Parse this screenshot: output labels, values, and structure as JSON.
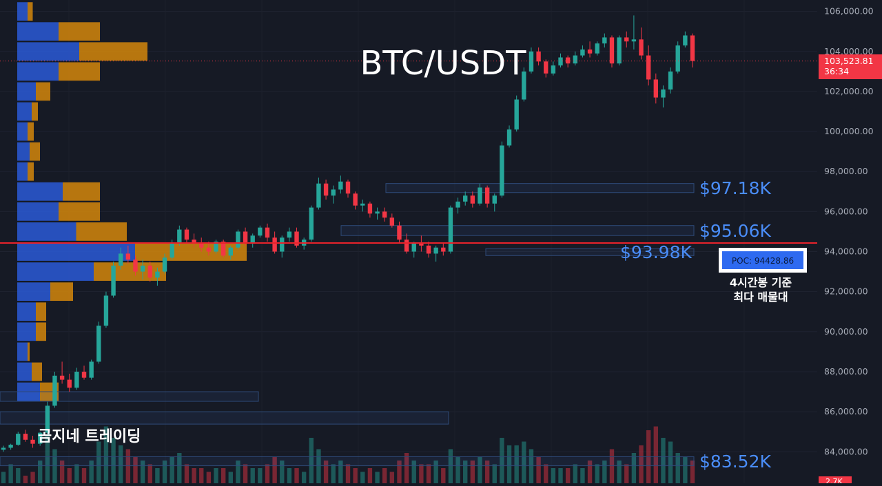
{
  "chart_data": {
    "type": "candlestick",
    "title": "BTC/USDT",
    "watermark": "곰지네 트레이딩",
    "y_axis": {
      "ticks": [
        84000,
        86000,
        88000,
        90000,
        92000,
        94000,
        96000,
        98000,
        100000,
        102000,
        104000,
        106000
      ],
      "tick_labels": [
        "84,000.00",
        "86,000.00",
        "88,000.00",
        "90,000.00",
        "92,000.00",
        "94,000.00",
        "96,000.00",
        "98,000.00",
        "100,000.00",
        "102,000.00",
        "104,000.00",
        "106,000.00"
      ],
      "range": [
        83200,
        106500
      ],
      "side": "right"
    },
    "current_price": {
      "value": 103523.81,
      "label": "103,523.81",
      "countdown": "36:34",
      "color": "#f23645"
    },
    "volume_label": "2.7K",
    "poc": {
      "value": 94428.86,
      "label": "POC: 94428.86",
      "note_line1": "4시간봉 기준",
      "note_line2": "최다 매물대"
    },
    "zones": [
      {
        "label": "$97.18K",
        "low": 96950,
        "high": 97400
      },
      {
        "label": "$95.06K",
        "low": 94800,
        "high": 95300
      },
      {
        "label": "$93.98K",
        "low": 93800,
        "high": 94150
      },
      {
        "label": "$83.52K",
        "low": 83300,
        "high": 83750
      }
    ],
    "candles": [
      [
        84100,
        84300,
        84000,
        84200
      ],
      [
        84200,
        84400,
        84100,
        84350
      ],
      [
        84350,
        85000,
        84300,
        84900
      ],
      [
        84900,
        85100,
        84500,
        84600
      ],
      [
        84600,
        84800,
        84200,
        84400
      ],
      [
        84400,
        85000,
        84300,
        84950
      ],
      [
        84950,
        86500,
        84900,
        86300
      ],
      [
        86300,
        88000,
        86200,
        87800
      ],
      [
        87800,
        88500,
        87400,
        87600
      ],
      [
        87600,
        87900,
        87000,
        87200
      ],
      [
        87200,
        88200,
        87100,
        88000
      ],
      [
        88000,
        88300,
        87600,
        87700
      ],
      [
        87700,
        88600,
        87600,
        88500
      ],
      [
        88500,
        90500,
        88400,
        90300
      ],
      [
        90300,
        92000,
        90200,
        91800
      ],
      [
        91800,
        93500,
        91700,
        93300
      ],
      [
        93300,
        94200,
        93100,
        93900
      ],
      [
        93900,
        94300,
        93400,
        93600
      ],
      [
        93600,
        93800,
        92800,
        93000
      ],
      [
        93000,
        93600,
        92600,
        93300
      ],
      [
        93300,
        93500,
        92500,
        92700
      ],
      [
        92700,
        93200,
        92300,
        93000
      ],
      [
        93000,
        93900,
        92900,
        93700
      ],
      [
        93700,
        94600,
        93600,
        94400
      ],
      [
        94400,
        95300,
        94300,
        95100
      ],
      [
        95100,
        95200,
        94400,
        94600
      ],
      [
        94600,
        94900,
        94200,
        94400
      ],
      [
        94400,
        94700,
        94000,
        94200
      ],
      [
        94200,
        94500,
        93800,
        94000
      ],
      [
        94000,
        94600,
        93900,
        94500
      ],
      [
        94500,
        94600,
        93700,
        93800
      ],
      [
        93800,
        94300,
        93600,
        94200
      ],
      [
        94200,
        95100,
        94100,
        95000
      ],
      [
        95000,
        95200,
        94300,
        94400
      ],
      [
        94400,
        94900,
        94200,
        94800
      ],
      [
        94800,
        95300,
        94700,
        95200
      ],
      [
        95200,
        95400,
        94500,
        94700
      ],
      [
        94700,
        95000,
        93900,
        94000
      ],
      [
        94000,
        94800,
        93700,
        94700
      ],
      [
        94700,
        95200,
        94500,
        95000
      ],
      [
        95000,
        95200,
        94200,
        94300
      ],
      [
        94300,
        94700,
        94100,
        94600
      ],
      [
        94600,
        96300,
        94500,
        96200
      ],
      [
        96200,
        97700,
        96100,
        97400
      ],
      [
        97400,
        97600,
        96600,
        96800
      ],
      [
        96800,
        97300,
        96400,
        97100
      ],
      [
        97100,
        97800,
        96900,
        97500
      ],
      [
        97500,
        97600,
        96700,
        96900
      ],
      [
        96900,
        97000,
        96100,
        96300
      ],
      [
        96300,
        96600,
        96000,
        96400
      ],
      [
        96400,
        96500,
        95700,
        95900
      ],
      [
        95900,
        96200,
        95600,
        96000
      ],
      [
        96000,
        96200,
        95500,
        95700
      ],
      [
        95700,
        95900,
        95200,
        95300
      ],
      [
        95300,
        95500,
        94400,
        94600
      ],
      [
        94600,
        94900,
        93900,
        94000
      ],
      [
        94000,
        94500,
        93700,
        94400
      ],
      [
        94400,
        94800,
        94000,
        94300
      ],
      [
        94300,
        94500,
        93700,
        93900
      ],
      [
        93900,
        94300,
        93500,
        94200
      ],
      [
        94200,
        94400,
        93800,
        94000
      ],
      [
        94000,
        96300,
        93900,
        96200
      ],
      [
        96200,
        96700,
        95900,
        96500
      ],
      [
        96500,
        97000,
        96300,
        96800
      ],
      [
        96800,
        97000,
        96200,
        96400
      ],
      [
        96400,
        97400,
        96300,
        97200
      ],
      [
        97200,
        97300,
        96200,
        96400
      ],
      [
        96400,
        96900,
        96000,
        96800
      ],
      [
        96800,
        99500,
        96700,
        99300
      ],
      [
        99300,
        100300,
        99200,
        100100
      ],
      [
        100100,
        101800,
        100000,
        101600
      ],
      [
        101600,
        103200,
        101500,
        103000
      ],
      [
        103000,
        104200,
        102900,
        104000
      ],
      [
        104000,
        104200,
        103300,
        103500
      ],
      [
        103500,
        103600,
        102700,
        102900
      ],
      [
        102900,
        103500,
        102800,
        103300
      ],
      [
        103300,
        103900,
        103200,
        103700
      ],
      [
        103700,
        103800,
        103200,
        103400
      ],
      [
        103400,
        104000,
        103300,
        103800
      ],
      [
        103800,
        104300,
        103700,
        104100
      ],
      [
        104100,
        104500,
        103700,
        103900
      ],
      [
        103900,
        104500,
        103800,
        104400
      ],
      [
        104400,
        104900,
        104200,
        104700
      ],
      [
        104700,
        104800,
        103200,
        103400
      ],
      [
        103400,
        104800,
        103300,
        104700
      ],
      [
        104700,
        105000,
        104200,
        104500
      ],
      [
        104500,
        105800,
        104100,
        104600
      ],
      [
        104600,
        105200,
        103600,
        103800
      ],
      [
        103800,
        104300,
        102300,
        102600
      ],
      [
        102600,
        102900,
        101400,
        101700
      ],
      [
        101700,
        102300,
        101200,
        102100
      ],
      [
        102100,
        103200,
        101900,
        103000
      ],
      [
        103000,
        104500,
        102900,
        104300
      ],
      [
        104300,
        105000,
        104200,
        104800
      ],
      [
        104800,
        104900,
        103200,
        103524
      ]
    ],
    "volume_profile": {
      "bins": [
        {
          "price": 106000,
          "blue": 0.1,
          "orange": 0.05
        },
        {
          "price": 105000,
          "blue": 0.4,
          "orange": 0.4
        },
        {
          "price": 104000,
          "blue": 0.6,
          "orange": 0.66
        },
        {
          "price": 103000,
          "blue": 0.4,
          "orange": 0.4
        },
        {
          "price": 102000,
          "blue": 0.18,
          "orange": 0.14
        },
        {
          "price": 101000,
          "blue": 0.14,
          "orange": 0.06
        },
        {
          "price": 100000,
          "blue": 0.1,
          "orange": 0.06
        },
        {
          "price": 99000,
          "blue": 0.12,
          "orange": 0.1
        },
        {
          "price": 98000,
          "blue": 0.1,
          "orange": 0.06
        },
        {
          "price": 97000,
          "blue": 0.44,
          "orange": 0.36
        },
        {
          "price": 96000,
          "blue": 0.4,
          "orange": 0.4
        },
        {
          "price": 95000,
          "blue": 0.57,
          "orange": 0.49
        },
        {
          "price": 94000,
          "blue": 1.14,
          "orange": 1.08
        },
        {
          "price": 93000,
          "blue": 0.74,
          "orange": 0.7
        },
        {
          "price": 92000,
          "blue": 0.32,
          "orange": 0.22
        },
        {
          "price": 91000,
          "blue": 0.18,
          "orange": 0.1
        },
        {
          "price": 90000,
          "blue": 0.18,
          "orange": 0.1
        },
        {
          "price": 89000,
          "blue": 0.1,
          "orange": 0.02
        },
        {
          "price": 88000,
          "blue": 0.14,
          "orange": 0.1
        },
        {
          "price": 87000,
          "blue": 0.22,
          "orange": 0.18
        }
      ]
    },
    "volumes": [
      0.15,
      0.25,
      0.2,
      0.1,
      0.15,
      0.3,
      0.65,
      0.45,
      0.3,
      0.2,
      0.25,
      0.2,
      0.3,
      0.55,
      0.75,
      0.6,
      0.5,
      0.45,
      0.35,
      0.3,
      0.25,
      0.2,
      0.3,
      0.35,
      0.4,
      0.25,
      0.2,
      0.2,
      0.15,
      0.2,
      0.2,
      0.15,
      0.3,
      0.25,
      0.2,
      0.2,
      0.25,
      0.35,
      0.3,
      0.2,
      0.2,
      0.15,
      0.6,
      0.45,
      0.3,
      0.25,
      0.3,
      0.25,
      0.2,
      0.15,
      0.2,
      0.15,
      0.2,
      0.15,
      0.3,
      0.4,
      0.3,
      0.25,
      0.25,
      0.3,
      0.2,
      0.45,
      0.35,
      0.3,
      0.3,
      0.35,
      0.3,
      0.25,
      0.6,
      0.5,
      0.5,
      0.55,
      0.45,
      0.35,
      0.25,
      0.2,
      0.2,
      0.2,
      0.25,
      0.2,
      0.3,
      0.25,
      0.3,
      0.45,
      0.3,
      0.25,
      0.4,
      0.5,
      0.7,
      0.75,
      0.6,
      0.55,
      0.4,
      0.35,
      0.3
    ],
    "colors": {
      "background": "#161a25",
      "up": "#26a69a",
      "down": "#f23645",
      "zone_label": "#4a8df8",
      "poc_line": "#e8232b",
      "profile_blue": "#2a5bd7",
      "profile_orange": "#d4870c"
    }
  }
}
